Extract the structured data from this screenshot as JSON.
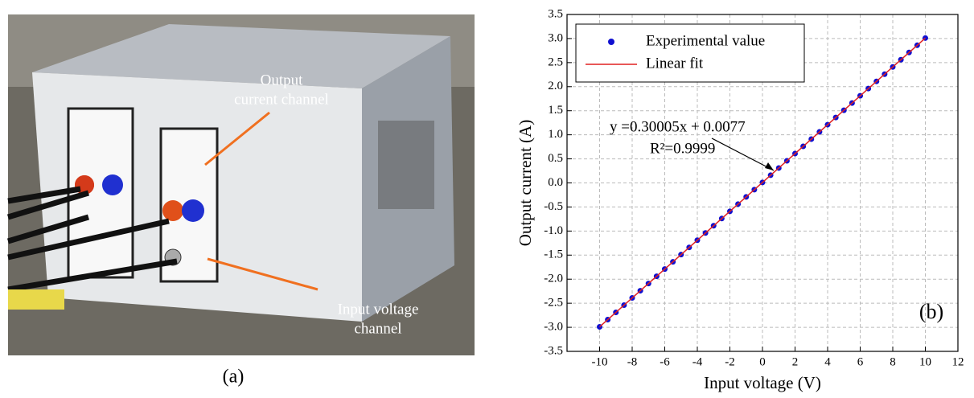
{
  "photo": {
    "labels": [
      "Output",
      "current channel",
      "Input voltage",
      "channel"
    ],
    "caption": "(a)"
  },
  "chart_data": {
    "type": "scatter",
    "xlabel": "Input voltage (V)",
    "ylabel": "Output current (A)",
    "panel_label": "(b)",
    "annotation": [
      "y =0.30005x + 0.0077",
      "R²=0.9999"
    ],
    "xlim": [
      -12,
      12
    ],
    "xticks": [
      -10,
      -8,
      -6,
      -4,
      -2,
      0,
      2,
      4,
      6,
      8,
      10,
      12
    ],
    "ylim": [
      -3.5,
      3.5
    ],
    "yticks": [
      -3.5,
      {
        "value": -3,
        "label": "-3.0"
      },
      -2.5,
      {
        "value": -2,
        "label": "-2.0"
      },
      -1.5,
      {
        "value": -1,
        "label": "-1.0"
      },
      -0.5,
      {
        "value": 0,
        "label": "0.0"
      },
      0.5,
      {
        "value": 1,
        "label": "1.0"
      },
      1.5,
      {
        "value": 2,
        "label": "2.0"
      },
      2.5,
      {
        "value": 3,
        "label": "3.0"
      },
      3.5
    ],
    "grid": true,
    "legend": "upper left",
    "series": [
      {
        "name": "Experimental value",
        "color": "#1010d0",
        "mode": "markers",
        "x": [
          -10,
          -9.5,
          -9,
          -8.5,
          -8,
          -7.5,
          -7,
          -6.5,
          -6,
          -5.5,
          -5,
          -4.5,
          -4,
          -3.5,
          -3,
          -2.5,
          -2,
          -1.5,
          -1,
          -0.5,
          0,
          0.5,
          1,
          1.5,
          2,
          2.5,
          3,
          3.5,
          4,
          4.5,
          5,
          5.5,
          6,
          6.5,
          7,
          7.5,
          8,
          8.5,
          9,
          9.5,
          10
        ],
        "values": [
          -2.99,
          -2.84,
          -2.69,
          -2.54,
          -2.39,
          -2.24,
          -2.09,
          -1.94,
          -1.79,
          -1.64,
          -1.49,
          -1.34,
          -1.19,
          -1.04,
          -0.89,
          -0.74,
          -0.59,
          -0.44,
          -0.29,
          -0.14,
          0.01,
          0.16,
          0.31,
          0.46,
          0.61,
          0.76,
          0.91,
          1.06,
          1.21,
          1.36,
          1.51,
          1.66,
          1.81,
          1.96,
          2.11,
          2.26,
          2.41,
          2.56,
          2.71,
          2.86,
          3.01
        ]
      },
      {
        "name": "Linear fit",
        "color": "#e02020",
        "mode": "line",
        "x": [
          -10,
          10
        ],
        "values": [
          -2.99,
          3.01
        ]
      }
    ]
  }
}
